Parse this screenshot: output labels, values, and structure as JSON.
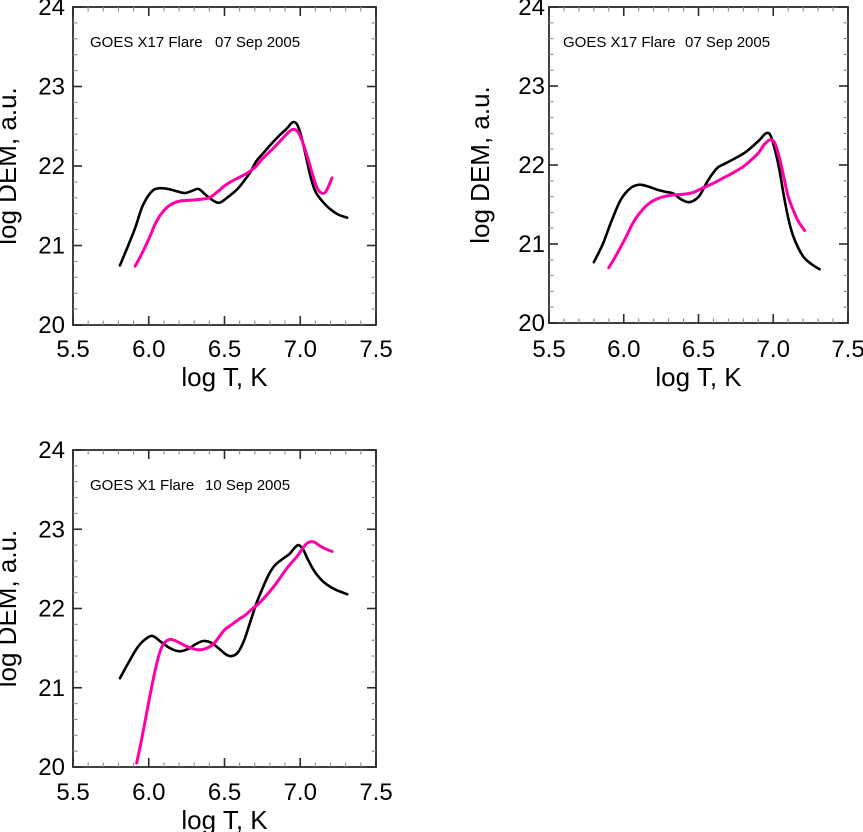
{
  "figure": {
    "background": "#ffffff",
    "curve_black_color": "#000000",
    "curve_magenta_color": "#FF00A8",
    "frame_color": "#2b2b2b",
    "minor_tick_color": "#8c8c8c"
  },
  "chart_data": [
    {
      "type": "line",
      "panel": "top-left",
      "flare_label": "GOES X17 Flare",
      "date_label": "07 Sep 2005",
      "xlabel": "log T, K",
      "ylabel": "log DEM, a.u.",
      "xlim": [
        5.5,
        7.5
      ],
      "ylim": [
        20,
        24
      ],
      "xticks": [
        5.5,
        6.0,
        6.5,
        7.0,
        7.5
      ],
      "xtick_labels": [
        "5.5",
        "6.0",
        "6.5",
        "7.0",
        "7.5"
      ],
      "yticks": [
        20,
        21,
        22,
        23,
        24
      ],
      "ytick_labels": [
        "20",
        "21",
        "22",
        "23",
        "24"
      ],
      "x_minor_step": 0.1,
      "y_minor_step": 0.2,
      "grid": false,
      "legend": "none",
      "series": [
        {
          "name": "black",
          "color": "#000000",
          "points": [
            [
              5.81,
              20.75
            ],
            [
              5.86,
              20.98
            ],
            [
              5.91,
              21.22
            ],
            [
              5.96,
              21.5
            ],
            [
              6.02,
              21.68
            ],
            [
              6.07,
              21.72
            ],
            [
              6.13,
              21.71
            ],
            [
              6.19,
              21.68
            ],
            [
              6.24,
              21.66
            ],
            [
              6.29,
              21.69
            ],
            [
              6.33,
              21.71
            ],
            [
              6.38,
              21.63
            ],
            [
              6.43,
              21.56
            ],
            [
              6.47,
              21.54
            ],
            [
              6.53,
              21.62
            ],
            [
              6.58,
              21.7
            ],
            [
              6.62,
              21.79
            ],
            [
              6.67,
              21.92
            ],
            [
              6.71,
              22.06
            ],
            [
              6.76,
              22.17
            ],
            [
              6.81,
              22.28
            ],
            [
              6.86,
              22.38
            ],
            [
              6.91,
              22.47
            ],
            [
              6.95,
              22.55
            ],
            [
              6.98,
              22.52
            ],
            [
              7.01,
              22.35
            ],
            [
              7.04,
              22.1
            ],
            [
              7.07,
              21.85
            ],
            [
              7.1,
              21.68
            ],
            [
              7.14,
              21.57
            ],
            [
              7.19,
              21.47
            ],
            [
              7.25,
              21.39
            ],
            [
              7.31,
              21.35
            ]
          ]
        },
        {
          "name": "magenta",
          "color": "#FF00A8",
          "points": [
            [
              5.91,
              20.74
            ],
            [
              5.95,
              20.88
            ],
            [
              6.0,
              21.08
            ],
            [
              6.05,
              21.3
            ],
            [
              6.1,
              21.44
            ],
            [
              6.15,
              21.52
            ],
            [
              6.21,
              21.56
            ],
            [
              6.28,
              21.57
            ],
            [
              6.34,
              21.58
            ],
            [
              6.4,
              21.6
            ],
            [
              6.45,
              21.67
            ],
            [
              6.5,
              21.75
            ],
            [
              6.55,
              21.81
            ],
            [
              6.6,
              21.86
            ],
            [
              6.65,
              21.91
            ],
            [
              6.7,
              21.98
            ],
            [
              6.75,
              22.09
            ],
            [
              6.81,
              22.2
            ],
            [
              6.87,
              22.32
            ],
            [
              6.92,
              22.42
            ],
            [
              6.95,
              22.46
            ],
            [
              6.98,
              22.44
            ],
            [
              7.01,
              22.33
            ],
            [
              7.05,
              22.1
            ],
            [
              7.08,
              21.9
            ],
            [
              7.11,
              21.73
            ],
            [
              7.14,
              21.66
            ],
            [
              7.17,
              21.68
            ],
            [
              7.21,
              21.85
            ]
          ]
        }
      ]
    },
    {
      "type": "line",
      "panel": "top-right",
      "flare_label": "GOES X17 Flare",
      "date_label": "07 Sep 2005",
      "xlabel": "log T, K",
      "ylabel": "log DEM, a.u.",
      "xlim": [
        5.5,
        7.5
      ],
      "ylim": [
        20,
        24
      ],
      "xticks": [
        5.5,
        6.0,
        6.5,
        7.0,
        7.5
      ],
      "xtick_labels": [
        "5.5",
        "6.0",
        "6.5",
        "7.0",
        "7.5"
      ],
      "yticks": [
        20,
        21,
        22,
        23,
        24
      ],
      "ytick_labels": [
        "20",
        "21",
        "22",
        "23",
        "24"
      ],
      "x_minor_step": 0.1,
      "y_minor_step": 0.2,
      "grid": false,
      "legend": "none",
      "series": [
        {
          "name": "black",
          "color": "#000000",
          "points": [
            [
              5.8,
              20.77
            ],
            [
              5.86,
              21.0
            ],
            [
              5.92,
              21.3
            ],
            [
              5.98,
              21.56
            ],
            [
              6.04,
              21.7
            ],
            [
              6.1,
              21.75
            ],
            [
              6.16,
              21.73
            ],
            [
              6.22,
              21.69
            ],
            [
              6.28,
              21.66
            ],
            [
              6.33,
              21.64
            ],
            [
              6.38,
              21.57
            ],
            [
              6.43,
              21.53
            ],
            [
              6.47,
              21.55
            ],
            [
              6.51,
              21.62
            ],
            [
              6.55,
              21.76
            ],
            [
              6.59,
              21.88
            ],
            [
              6.63,
              21.97
            ],
            [
              6.67,
              22.01
            ],
            [
              6.72,
              22.06
            ],
            [
              6.77,
              22.11
            ],
            [
              6.82,
              22.17
            ],
            [
              6.87,
              22.25
            ],
            [
              6.91,
              22.32
            ],
            [
              6.95,
              22.4
            ],
            [
              6.98,
              22.38
            ],
            [
              7.01,
              22.2
            ],
            [
              7.04,
              21.95
            ],
            [
              7.07,
              21.62
            ],
            [
              7.1,
              21.33
            ],
            [
              7.13,
              21.12
            ],
            [
              7.17,
              20.94
            ],
            [
              7.21,
              20.82
            ],
            [
              7.26,
              20.74
            ],
            [
              7.31,
              20.68
            ]
          ]
        },
        {
          "name": "magenta",
          "color": "#FF00A8",
          "points": [
            [
              5.9,
              20.7
            ],
            [
              5.95,
              20.86
            ],
            [
              6.01,
              21.07
            ],
            [
              6.06,
              21.26
            ],
            [
              6.11,
              21.4
            ],
            [
              6.16,
              21.5
            ],
            [
              6.21,
              21.56
            ],
            [
              6.27,
              21.6
            ],
            [
              6.33,
              21.62
            ],
            [
              6.4,
              21.63
            ],
            [
              6.46,
              21.65
            ],
            [
              6.53,
              21.71
            ],
            [
              6.6,
              21.77
            ],
            [
              6.66,
              21.83
            ],
            [
              6.73,
              21.9
            ],
            [
              6.8,
              21.98
            ],
            [
              6.85,
              22.06
            ],
            [
              6.9,
              22.15
            ],
            [
              6.94,
              22.26
            ],
            [
              6.98,
              22.32
            ],
            [
              7.01,
              22.28
            ],
            [
              7.04,
              22.1
            ],
            [
              7.07,
              21.85
            ],
            [
              7.1,
              21.6
            ],
            [
              7.14,
              21.4
            ],
            [
              7.17,
              21.28
            ],
            [
              7.21,
              21.17
            ]
          ]
        }
      ]
    },
    {
      "type": "line",
      "panel": "bottom-left",
      "flare_label": "GOES X1 Flare",
      "date_label": "10 Sep 2005",
      "xlabel": "log T, K",
      "ylabel": "log DEM, a.u.",
      "xlim": [
        5.5,
        7.5
      ],
      "ylim": [
        20,
        24
      ],
      "xticks": [
        5.5,
        6.0,
        6.5,
        7.0,
        7.5
      ],
      "xtick_labels": [
        "5.5",
        "6.0",
        "6.5",
        "7.0",
        "7.5"
      ],
      "yticks": [
        20,
        21,
        22,
        23,
        24
      ],
      "ytick_labels": [
        "20",
        "21",
        "22",
        "23",
        "24"
      ],
      "x_minor_step": 0.1,
      "y_minor_step": 0.2,
      "grid": false,
      "legend": "none",
      "series": [
        {
          "name": "black",
          "color": "#000000",
          "points": [
            [
              5.81,
              21.12
            ],
            [
              5.87,
              21.33
            ],
            [
              5.93,
              21.52
            ],
            [
              5.99,
              21.63
            ],
            [
              6.03,
              21.65
            ],
            [
              6.08,
              21.58
            ],
            [
              6.14,
              21.5
            ],
            [
              6.2,
              21.46
            ],
            [
              6.26,
              21.49
            ],
            [
              6.31,
              21.55
            ],
            [
              6.36,
              21.59
            ],
            [
              6.41,
              21.57
            ],
            [
              6.46,
              21.5
            ],
            [
              6.51,
              21.42
            ],
            [
              6.55,
              21.4
            ],
            [
              6.59,
              21.45
            ],
            [
              6.63,
              21.6
            ],
            [
              6.67,
              21.83
            ],
            [
              6.71,
              22.06
            ],
            [
              6.75,
              22.25
            ],
            [
              6.79,
              22.42
            ],
            [
              6.83,
              22.54
            ],
            [
              6.88,
              22.62
            ],
            [
              6.93,
              22.69
            ],
            [
              6.96,
              22.76
            ],
            [
              6.99,
              22.8
            ],
            [
              7.02,
              22.74
            ],
            [
              7.05,
              22.62
            ],
            [
              7.09,
              22.48
            ],
            [
              7.13,
              22.38
            ],
            [
              7.17,
              22.31
            ],
            [
              7.23,
              22.24
            ],
            [
              7.31,
              22.18
            ]
          ]
        },
        {
          "name": "magenta",
          "color": "#FF00A8",
          "points": [
            [
              5.92,
              20.05
            ],
            [
              5.95,
              20.32
            ],
            [
              5.98,
              20.62
            ],
            [
              6.01,
              20.92
            ],
            [
              6.04,
              21.2
            ],
            [
              6.07,
              21.43
            ],
            [
              6.1,
              21.56
            ],
            [
              6.14,
              21.61
            ],
            [
              6.18,
              21.59
            ],
            [
              6.23,
              21.54
            ],
            [
              6.28,
              21.5
            ],
            [
              6.32,
              21.48
            ],
            [
              6.37,
              21.49
            ],
            [
              6.42,
              21.54
            ],
            [
              6.46,
              21.63
            ],
            [
              6.5,
              21.73
            ],
            [
              6.55,
              21.8
            ],
            [
              6.6,
              21.87
            ],
            [
              6.64,
              21.92
            ],
            [
              6.68,
              21.99
            ],
            [
              6.72,
              22.05
            ],
            [
              6.76,
              22.13
            ],
            [
              6.81,
              22.24
            ],
            [
              6.85,
              22.34
            ],
            [
              6.89,
              22.45
            ],
            [
              6.93,
              22.55
            ],
            [
              6.98,
              22.66
            ],
            [
              7.02,
              22.77
            ],
            [
              7.05,
              22.83
            ],
            [
              7.09,
              22.84
            ],
            [
              7.13,
              22.79
            ],
            [
              7.17,
              22.75
            ],
            [
              7.21,
              22.72
            ]
          ]
        }
      ]
    }
  ]
}
